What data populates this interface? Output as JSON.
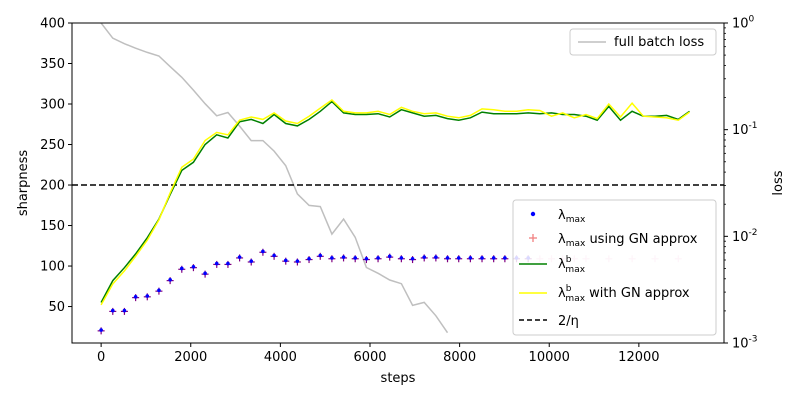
{
  "chart_data": {
    "type": "line",
    "xlabel": "steps",
    "ylabel": "sharpness",
    "ylabel_right": "loss",
    "xlim": [
      -650,
      13900
    ],
    "ylim": [
      5,
      400
    ],
    "ylim_right": [
      0.001,
      1
    ],
    "yscale_right": "log",
    "xticks": [
      0,
      2000,
      4000,
      6000,
      8000,
      10000,
      12000
    ],
    "xtick_labels": [
      "0",
      "2000",
      "4000",
      "6000",
      "8000",
      "10000",
      "12000"
    ],
    "yticks": [
      50,
      100,
      150,
      200,
      250,
      300,
      350,
      400
    ],
    "ytick_labels": [
      "50",
      "100",
      "150",
      "200",
      "250",
      "300",
      "350",
      "400"
    ],
    "yticks_right": [
      0.001,
      0.01,
      0.1,
      1
    ],
    "grid": false,
    "threshold": {
      "value": 200,
      "color": "#000000",
      "style": "dashed"
    },
    "colors": {
      "lambda_max": "#0000ff",
      "lambda_gn": "#f08080",
      "overlap": "#800080",
      "lambda_b": "#008000",
      "lambda_b_gn": "#ffff00",
      "full_batch_loss": "#bfbfbf"
    },
    "lambda_x": [
      0,
      260,
      520,
      770,
      1030,
      1290,
      1540,
      1800,
      2060,
      2320,
      2580,
      2830,
      3090,
      3350,
      3610,
      3860,
      4120,
      4380,
      4640,
      4890,
      5150,
      5410,
      5670,
      5920,
      6180,
      6440,
      6700,
      6950,
      7210,
      7470,
      7730,
      7980,
      8240,
      8500,
      8760,
      9010,
      9270,
      9530,
      9790,
      10050,
      10300,
      10560,
      10820,
      11330,
      11850,
      12360,
      12880
    ],
    "lambda_y": [
      21,
      45,
      45,
      62,
      63,
      70,
      83,
      97,
      99,
      91,
      103,
      103,
      111,
      106,
      118,
      113,
      107,
      106,
      109,
      113,
      110,
      111,
      110,
      109,
      110,
      112,
      110,
      109,
      111,
      111,
      110,
      110,
      110,
      110,
      110,
      110,
      110,
      110,
      110,
      110,
      110,
      110,
      110,
      110,
      110,
      110,
      110
    ],
    "lambda_gn_y": [
      20,
      44,
      44,
      61,
      62,
      69,
      82,
      96,
      98,
      90,
      102,
      102,
      110,
      105,
      117,
      112,
      106,
      105,
      108,
      112,
      109,
      110,
      109,
      108,
      109,
      111,
      109,
      108,
      110,
      110,
      109,
      109,
      109,
      109,
      109,
      109,
      109,
      109,
      109,
      109,
      109,
      109,
      109,
      109,
      109,
      109,
      109
    ],
    "lambda_b_x": [
      0,
      260,
      520,
      770,
      1030,
      1290,
      1540,
      1800,
      2060,
      2320,
      2580,
      2830,
      3090,
      3350,
      3610,
      3860,
      4120,
      4380,
      4640,
      4890,
      5150,
      5410,
      5670,
      5920,
      6180,
      6440,
      6700,
      6950,
      7210,
      7470,
      7730,
      7980,
      8240,
      8500,
      8760,
      9010,
      9270,
      9530,
      9790,
      10050,
      10300,
      10560,
      10820,
      11070,
      11330,
      11590,
      11850,
      12100,
      12360,
      12620,
      12880,
      13130
    ],
    "lambda_b_y": [
      55,
      82,
      98,
      115,
      135,
      158,
      188,
      218,
      228,
      250,
      262,
      258,
      278,
      281,
      276,
      287,
      276,
      273,
      281,
      291,
      303,
      289,
      287,
      287,
      288,
      284,
      293,
      289,
      285,
      286,
      282,
      280,
      283,
      290,
      288,
      288,
      288,
      289,
      288,
      289,
      287,
      287,
      285,
      280,
      297,
      280,
      291,
      285,
      285,
      286,
      281,
      291
    ],
    "lambda_b_gn_y": [
      52,
      78,
      94,
      112,
      132,
      157,
      190,
      222,
      232,
      255,
      265,
      262,
      280,
      284,
      281,
      289,
      279,
      276,
      285,
      295,
      305,
      291,
      289,
      289,
      291,
      287,
      296,
      291,
      288,
      289,
      285,
      283,
      286,
      294,
      293,
      291,
      291,
      293,
      292,
      285,
      289,
      283,
      287,
      282,
      300,
      284,
      301,
      285,
      284,
      283,
      280,
      290
    ],
    "loss_x": [
      0,
      260,
      520,
      770,
      1030,
      1290,
      1540,
      1800,
      2060,
      2320,
      2580,
      2830,
      3090,
      3350,
      3610,
      3860,
      4120,
      4380,
      4640,
      4890,
      5150,
      5410,
      5670,
      5920,
      6180,
      6440,
      6700,
      6950,
      7210,
      7470,
      7730
    ],
    "loss_y": [
      1.0,
      0.72,
      0.64,
      0.58,
      0.53,
      0.49,
      0.39,
      0.31,
      0.235,
      0.175,
      0.135,
      0.145,
      0.108,
      0.079,
      0.079,
      0.063,
      0.046,
      0.025,
      0.0195,
      0.019,
      0.0105,
      0.0145,
      0.0098,
      0.0051,
      0.0045,
      0.0039,
      0.0036,
      0.00225,
      0.0024,
      0.0018,
      0.00125
    ],
    "legend_top": {
      "position": "top-right",
      "entries": [
        {
          "key": "full_batch_loss",
          "label": "full batch loss"
        }
      ]
    },
    "legend_bottom": {
      "position": "lower-right",
      "entries": [
        {
          "key": "lambda_max",
          "label": "λmax"
        },
        {
          "key": "lambda_gn",
          "label": "λmax using GN approx"
        },
        {
          "key": "lambda_b",
          "label": "λbmax"
        },
        {
          "key": "lambda_b_gn",
          "label": "λbmax with GN approx"
        },
        {
          "key": "threshold",
          "label": "2/η"
        }
      ]
    }
  }
}
